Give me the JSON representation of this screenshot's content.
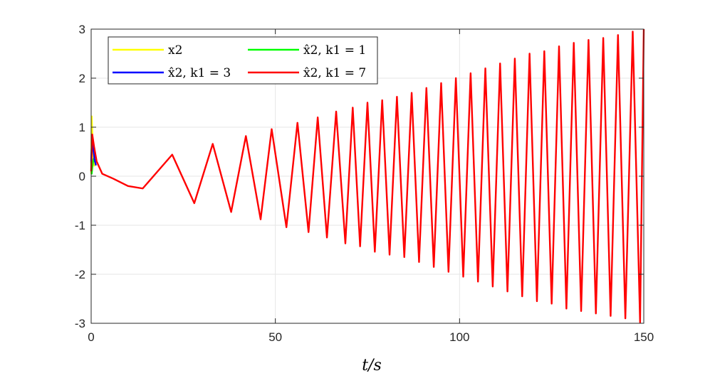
{
  "chart_data": {
    "type": "line",
    "xlabel": "t/s",
    "ylabel": "",
    "xlim": [
      0,
      150
    ],
    "ylim": [
      -3,
      3
    ],
    "xticks": [
      0,
      50,
      100,
      150
    ],
    "yticks": [
      -3,
      -2,
      -1,
      0,
      1,
      2,
      3
    ],
    "xtick_labels": [
      "0",
      "50",
      "100",
      "150"
    ],
    "ytick_labels": [
      "-3",
      "-2",
      "-1",
      "0",
      "1",
      "2",
      "3"
    ],
    "grid": true,
    "legend_position": "top-left",
    "series": [
      {
        "name": "x2",
        "color": "#ffff00",
        "points": [
          [
            0,
            0.05
          ],
          [
            0.15,
            1.22
          ],
          [
            0.3,
            0.9
          ],
          [
            0.5,
            0.45
          ],
          [
            0.9,
            0.2
          ]
        ]
      },
      {
        "name": "x̂2, k1 = 1",
        "color": "#00ff00",
        "points": [
          [
            0,
            0.3
          ],
          [
            0.15,
            0.05
          ],
          [
            0.35,
            0.2
          ],
          [
            0.6,
            0.35
          ],
          [
            1.0,
            0.3
          ]
        ]
      },
      {
        "name": "x̂2, k1 = 3",
        "color": "#0000ff",
        "points": [
          [
            0,
            0.3
          ],
          [
            0.2,
            0.72
          ],
          [
            0.5,
            0.6
          ],
          [
            0.9,
            0.35
          ],
          [
            1.3,
            0.22
          ]
        ]
      },
      {
        "name": "x̂2, k1 = 7",
        "color": "#ff0000",
        "points": [
          [
            0,
            0.1
          ],
          [
            0.3,
            0.85
          ],
          [
            0.8,
            0.6
          ],
          [
            1.5,
            0.3
          ],
          [
            3,
            0.05
          ],
          [
            6,
            -0.05
          ],
          [
            10,
            -0.2
          ],
          [
            14,
            -0.25
          ],
          [
            22,
            0.44
          ],
          [
            28,
            -0.55
          ],
          [
            33,
            0.66
          ],
          [
            38,
            -0.73
          ],
          [
            42,
            0.82
          ],
          [
            46,
            -0.88
          ],
          [
            49,
            0.96
          ],
          [
            53,
            -1.04
          ],
          [
            56,
            1.09
          ],
          [
            59,
            -1.14
          ],
          [
            61.5,
            1.2
          ],
          [
            64,
            -1.25
          ],
          [
            66.5,
            1.32
          ],
          [
            69,
            -1.37
          ],
          [
            71,
            1.4
          ],
          [
            73,
            -1.43
          ],
          [
            75,
            1.5
          ],
          [
            77,
            -1.54
          ],
          [
            79,
            1.55
          ],
          [
            81,
            -1.6
          ],
          [
            83,
            1.62
          ],
          [
            85,
            -1.65
          ],
          [
            87,
            1.7
          ],
          [
            89,
            -1.75
          ],
          [
            91,
            1.8
          ],
          [
            93,
            -1.85
          ],
          [
            95,
            1.9
          ],
          [
            97,
            -1.95
          ],
          [
            99,
            2.0
          ],
          [
            101,
            -2.05
          ],
          [
            103,
            2.1
          ],
          [
            105,
            -2.15
          ],
          [
            107,
            2.2
          ],
          [
            109,
            -2.25
          ],
          [
            111,
            2.3
          ],
          [
            113,
            -2.35
          ],
          [
            115,
            2.4
          ],
          [
            117,
            -2.45
          ],
          [
            119,
            2.5
          ],
          [
            121,
            -2.55
          ],
          [
            123,
            2.55
          ],
          [
            125,
            -2.6
          ],
          [
            127,
            2.65
          ],
          [
            129,
            -2.7
          ],
          [
            131,
            2.72
          ],
          [
            133,
            -2.75
          ],
          [
            135,
            2.78
          ],
          [
            137,
            -2.8
          ],
          [
            139,
            2.82
          ],
          [
            141,
            -2.85
          ],
          [
            143,
            2.88
          ],
          [
            145,
            -2.9
          ],
          [
            147,
            2.95
          ],
          [
            149,
            -2.98
          ],
          [
            150,
            3.0
          ]
        ]
      }
    ]
  }
}
